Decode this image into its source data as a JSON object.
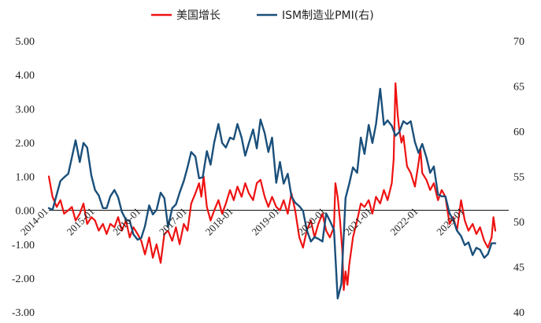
{
  "chart_data": {
    "type": "line",
    "title": "",
    "legend_position": "top",
    "x_tick_labels": [
      "2014-01",
      "2015-01",
      "2016-01",
      "2017-01",
      "2018-01",
      "2019-01",
      "2020-01",
      "2021-01",
      "2022-01",
      "2023-01"
    ],
    "x_range": [
      2014.0,
      2023.95
    ],
    "y_left": {
      "tick_labels": [
        "5.00",
        "4.00",
        "3.00",
        "2.00",
        "1.00",
        "0.00",
        "-1.00",
        "-2.00",
        "-3.00"
      ],
      "range": [
        -3.0,
        5.0
      ]
    },
    "y_right": {
      "tick_labels": [
        "70",
        "65",
        "60",
        "55",
        "50",
        "45",
        "40"
      ],
      "range": [
        40,
        70
      ]
    },
    "series": [
      {
        "name": "美国增长",
        "axis": "left",
        "color": "#ee1111",
        "points": [
          [
            2014.0,
            1.0
          ],
          [
            2014.08,
            0.4
          ],
          [
            2014.17,
            0.1
          ],
          [
            2014.25,
            0.3
          ],
          [
            2014.33,
            -0.1
          ],
          [
            2014.42,
            0.0
          ],
          [
            2014.5,
            0.1
          ],
          [
            2014.58,
            -0.3
          ],
          [
            2014.67,
            -0.1
          ],
          [
            2014.75,
            0.2
          ],
          [
            2014.83,
            -0.4
          ],
          [
            2014.92,
            -0.2
          ],
          [
            2015.0,
            -0.3
          ],
          [
            2015.08,
            -0.6
          ],
          [
            2015.17,
            -0.4
          ],
          [
            2015.25,
            -0.7
          ],
          [
            2015.33,
            -0.4
          ],
          [
            2015.42,
            -0.5
          ],
          [
            2015.5,
            -0.2
          ],
          [
            2015.58,
            -0.6
          ],
          [
            2015.67,
            -0.3
          ],
          [
            2015.75,
            -0.8
          ],
          [
            2015.83,
            -0.5
          ],
          [
            2015.92,
            -0.7
          ],
          [
            2016.0,
            -0.9
          ],
          [
            2016.08,
            -1.3
          ],
          [
            2016.17,
            -0.8
          ],
          [
            2016.25,
            -1.4
          ],
          [
            2016.33,
            -1.0
          ],
          [
            2016.42,
            -1.55
          ],
          [
            2016.5,
            -0.7
          ],
          [
            2016.58,
            -0.6
          ],
          [
            2016.67,
            -0.9
          ],
          [
            2016.75,
            -0.5
          ],
          [
            2016.83,
            -1.0
          ],
          [
            2016.92,
            -0.4
          ],
          [
            2017.0,
            -0.6
          ],
          [
            2017.08,
            0.2
          ],
          [
            2017.17,
            0.5
          ],
          [
            2017.25,
            0.8
          ],
          [
            2017.3,
            0.4
          ],
          [
            2017.35,
            1.0
          ],
          [
            2017.42,
            0.1
          ],
          [
            2017.5,
            -0.3
          ],
          [
            2017.58,
            0.0
          ],
          [
            2017.67,
            0.3
          ],
          [
            2017.75,
            -0.1
          ],
          [
            2017.83,
            0.2
          ],
          [
            2017.92,
            0.6
          ],
          [
            2018.0,
            0.3
          ],
          [
            2018.08,
            0.7
          ],
          [
            2018.17,
            0.4
          ],
          [
            2018.25,
            0.8
          ],
          [
            2018.33,
            0.5
          ],
          [
            2018.42,
            0.3
          ],
          [
            2018.5,
            0.8
          ],
          [
            2018.58,
            0.9
          ],
          [
            2018.67,
            0.4
          ],
          [
            2018.75,
            0.1
          ],
          [
            2018.83,
            0.4
          ],
          [
            2018.92,
            0.1
          ],
          [
            2019.0,
            0.0
          ],
          [
            2019.08,
            0.3
          ],
          [
            2019.17,
            -0.1
          ],
          [
            2019.25,
            0.5
          ],
          [
            2019.33,
            0.0
          ],
          [
            2019.42,
            -0.8
          ],
          [
            2019.5,
            -1.1
          ],
          [
            2019.58,
            -0.6
          ],
          [
            2019.67,
            -0.3
          ],
          [
            2019.75,
            -0.8
          ],
          [
            2019.83,
            -0.4
          ],
          [
            2019.92,
            -0.1
          ],
          [
            2020.0,
            -0.6
          ],
          [
            2020.08,
            -0.8
          ],
          [
            2020.17,
            -0.5
          ],
          [
            2020.2,
            0.8
          ],
          [
            2020.25,
            0.4
          ],
          [
            2020.3,
            -0.3
          ],
          [
            2020.35,
            -1.2
          ],
          [
            2020.38,
            -2.35
          ],
          [
            2020.42,
            -1.8
          ],
          [
            2020.46,
            -2.2
          ],
          [
            2020.5,
            -1.6
          ],
          [
            2020.54,
            -1.2
          ],
          [
            2020.58,
            -0.8
          ],
          [
            2020.67,
            -0.3
          ],
          [
            2020.75,
            0.2
          ],
          [
            2020.83,
            0.1
          ],
          [
            2020.92,
            0.3
          ],
          [
            2021.0,
            -0.1
          ],
          [
            2021.08,
            0.4
          ],
          [
            2021.17,
            0.2
          ],
          [
            2021.25,
            0.6
          ],
          [
            2021.33,
            0.3
          ],
          [
            2021.42,
            0.8
          ],
          [
            2021.46,
            1.5
          ],
          [
            2021.5,
            3.75
          ],
          [
            2021.55,
            2.8
          ],
          [
            2021.58,
            2.4
          ],
          [
            2021.63,
            2.0
          ],
          [
            2021.67,
            2.2
          ],
          [
            2021.75,
            1.3
          ],
          [
            2021.83,
            1.1
          ],
          [
            2021.92,
            0.7
          ],
          [
            2022.0,
            1.4
          ],
          [
            2022.04,
            1.8
          ],
          [
            2022.08,
            1.1
          ],
          [
            2022.17,
            0.9
          ],
          [
            2022.25,
            0.6
          ],
          [
            2022.33,
            0.8
          ],
          [
            2022.42,
            0.3
          ],
          [
            2022.5,
            0.6
          ],
          [
            2022.58,
            0.4
          ],
          [
            2022.67,
            -0.4
          ],
          [
            2022.75,
            -0.2
          ],
          [
            2022.83,
            -0.6
          ],
          [
            2022.92,
            0.3
          ],
          [
            2023.0,
            -0.3
          ],
          [
            2023.08,
            -0.6
          ],
          [
            2023.17,
            -0.4
          ],
          [
            2023.25,
            -0.7
          ],
          [
            2023.33,
            -0.5
          ],
          [
            2023.42,
            -0.9
          ],
          [
            2023.5,
            -1.1
          ],
          [
            2023.58,
            -0.8
          ],
          [
            2023.62,
            -0.2
          ],
          [
            2023.66,
            -0.6
          ]
        ]
      },
      {
        "name": "ISM制造业PMI(右)",
        "axis": "right",
        "color": "#1a4f7a",
        "points": [
          [
            2014.0,
            51.5
          ],
          [
            2014.08,
            51.3
          ],
          [
            2014.17,
            53.0
          ],
          [
            2014.25,
            54.5
          ],
          [
            2014.33,
            54.9
          ],
          [
            2014.42,
            55.3
          ],
          [
            2014.5,
            57.1
          ],
          [
            2014.58,
            59.0
          ],
          [
            2014.67,
            56.6
          ],
          [
            2014.75,
            58.7
          ],
          [
            2014.83,
            58.2
          ],
          [
            2014.92,
            55.1
          ],
          [
            2015.0,
            53.5
          ],
          [
            2015.08,
            52.9
          ],
          [
            2015.17,
            51.5
          ],
          [
            2015.25,
            51.5
          ],
          [
            2015.33,
            52.8
          ],
          [
            2015.42,
            53.5
          ],
          [
            2015.5,
            52.7
          ],
          [
            2015.58,
            51.1
          ],
          [
            2015.67,
            50.2
          ],
          [
            2015.75,
            50.1
          ],
          [
            2015.83,
            48.6
          ],
          [
            2015.92,
            48.0
          ],
          [
            2016.0,
            48.2
          ],
          [
            2016.08,
            49.5
          ],
          [
            2016.17,
            51.8
          ],
          [
            2016.25,
            50.8
          ],
          [
            2016.33,
            51.3
          ],
          [
            2016.42,
            53.2
          ],
          [
            2016.5,
            52.6
          ],
          [
            2016.58,
            49.4
          ],
          [
            2016.67,
            51.5
          ],
          [
            2016.75,
            51.9
          ],
          [
            2016.83,
            53.2
          ],
          [
            2016.92,
            54.5
          ],
          [
            2017.0,
            56.0
          ],
          [
            2017.08,
            57.7
          ],
          [
            2017.17,
            57.2
          ],
          [
            2017.25,
            54.8
          ],
          [
            2017.33,
            54.9
          ],
          [
            2017.42,
            57.8
          ],
          [
            2017.5,
            56.3
          ],
          [
            2017.58,
            58.8
          ],
          [
            2017.67,
            60.8
          ],
          [
            2017.75,
            58.7
          ],
          [
            2017.83,
            58.2
          ],
          [
            2017.92,
            59.3
          ],
          [
            2018.0,
            59.1
          ],
          [
            2018.08,
            60.8
          ],
          [
            2018.17,
            59.3
          ],
          [
            2018.25,
            57.3
          ],
          [
            2018.33,
            58.7
          ],
          [
            2018.42,
            60.2
          ],
          [
            2018.5,
            58.1
          ],
          [
            2018.58,
            61.3
          ],
          [
            2018.67,
            59.8
          ],
          [
            2018.75,
            57.7
          ],
          [
            2018.83,
            59.3
          ],
          [
            2018.92,
            54.3
          ],
          [
            2019.0,
            56.6
          ],
          [
            2019.08,
            54.2
          ],
          [
            2019.17,
            55.3
          ],
          [
            2019.25,
            52.8
          ],
          [
            2019.33,
            52.1
          ],
          [
            2019.42,
            51.7
          ],
          [
            2019.5,
            51.2
          ],
          [
            2019.58,
            49.1
          ],
          [
            2019.67,
            47.8
          ],
          [
            2019.75,
            48.3
          ],
          [
            2019.83,
            48.1
          ],
          [
            2019.92,
            47.8
          ],
          [
            2020.0,
            50.9
          ],
          [
            2020.08,
            50.1
          ],
          [
            2020.17,
            49.1
          ],
          [
            2020.25,
            41.5
          ],
          [
            2020.33,
            43.1
          ],
          [
            2020.42,
            52.6
          ],
          [
            2020.5,
            54.2
          ],
          [
            2020.58,
            56.0
          ],
          [
            2020.67,
            55.4
          ],
          [
            2020.75,
            59.3
          ],
          [
            2020.83,
            57.5
          ],
          [
            2020.92,
            60.7
          ],
          [
            2021.0,
            58.7
          ],
          [
            2021.08,
            60.8
          ],
          [
            2021.17,
            64.7
          ],
          [
            2021.25,
            60.7
          ],
          [
            2021.33,
            61.2
          ],
          [
            2021.42,
            60.6
          ],
          [
            2021.5,
            59.5
          ],
          [
            2021.58,
            59.9
          ],
          [
            2021.67,
            61.1
          ],
          [
            2021.75,
            60.8
          ],
          [
            2021.83,
            61.1
          ],
          [
            2021.92,
            58.8
          ],
          [
            2022.0,
            57.6
          ],
          [
            2022.08,
            58.6
          ],
          [
            2022.17,
            57.1
          ],
          [
            2022.25,
            55.4
          ],
          [
            2022.33,
            56.1
          ],
          [
            2022.42,
            53.0
          ],
          [
            2022.5,
            52.8
          ],
          [
            2022.58,
            52.8
          ],
          [
            2022.67,
            50.9
          ],
          [
            2022.75,
            50.2
          ],
          [
            2022.83,
            49.0
          ],
          [
            2022.92,
            48.4
          ],
          [
            2023.0,
            47.4
          ],
          [
            2023.08,
            47.7
          ],
          [
            2023.17,
            46.3
          ],
          [
            2023.25,
            47.1
          ],
          [
            2023.33,
            46.9
          ],
          [
            2023.42,
            46.0
          ],
          [
            2023.5,
            46.4
          ],
          [
            2023.58,
            47.6
          ],
          [
            2023.66,
            47.6
          ]
        ]
      }
    ]
  }
}
